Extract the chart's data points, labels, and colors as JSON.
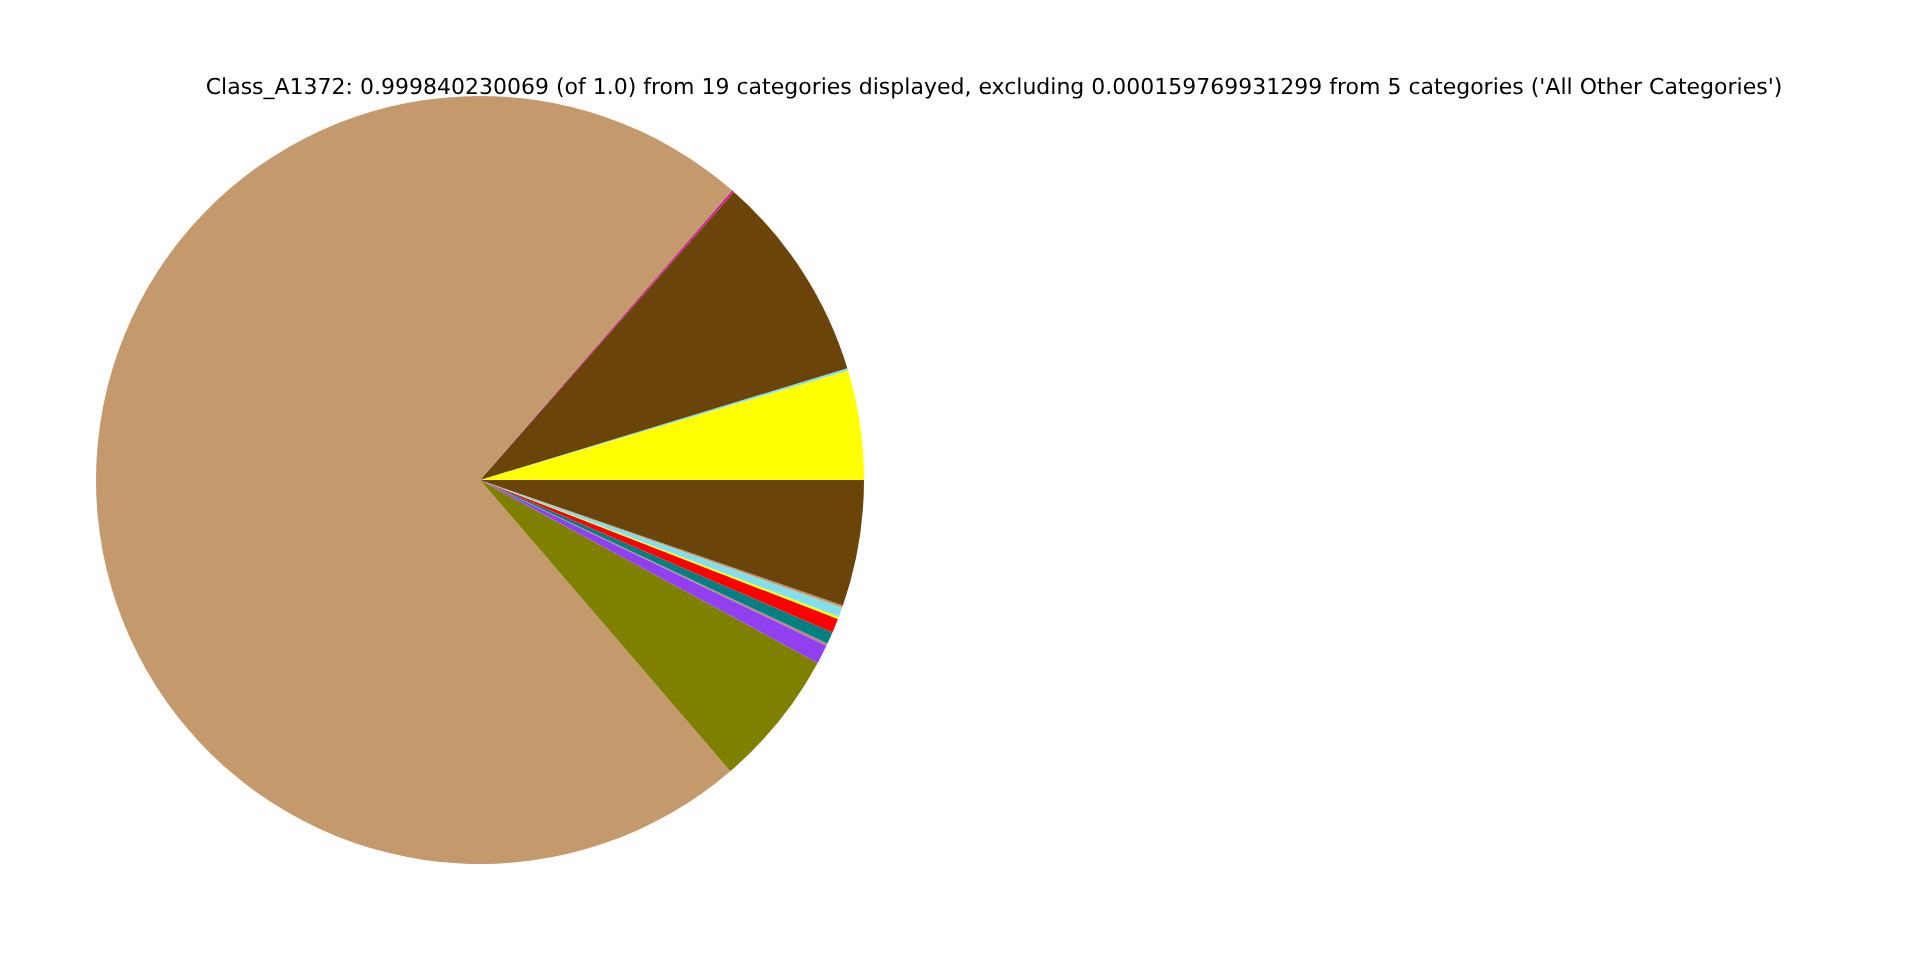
{
  "chart_data": {
    "type": "pie",
    "title": "Class_A1372: 0.999840230069 (of 1.0) from 19 categories displayed, excluding 0.000159769931299 from 5 categories ('All Other Categories')",
    "categories": [
      null,
      null,
      null,
      null,
      null,
      null,
      null,
      null,
      null,
      null,
      null,
      null,
      null,
      null
    ],
    "values": [
      4.6,
      0.1,
      8.8,
      0.1,
      72.7,
      5.8,
      0.8,
      0.1,
      0.5,
      0.6,
      0.1,
      0.4,
      0.1,
      5.3
    ],
    "colors": [
      "#ffff00",
      "#80e0f0",
      "#6b440a",
      "#d02090",
      "#c49a6c",
      "#808000",
      "#9040f0",
      "#c08080",
      "#008080",
      "#ff0000",
      "#ffff00",
      "#80e0f0",
      "#c49a6c",
      "#6b440a"
    ]
  }
}
